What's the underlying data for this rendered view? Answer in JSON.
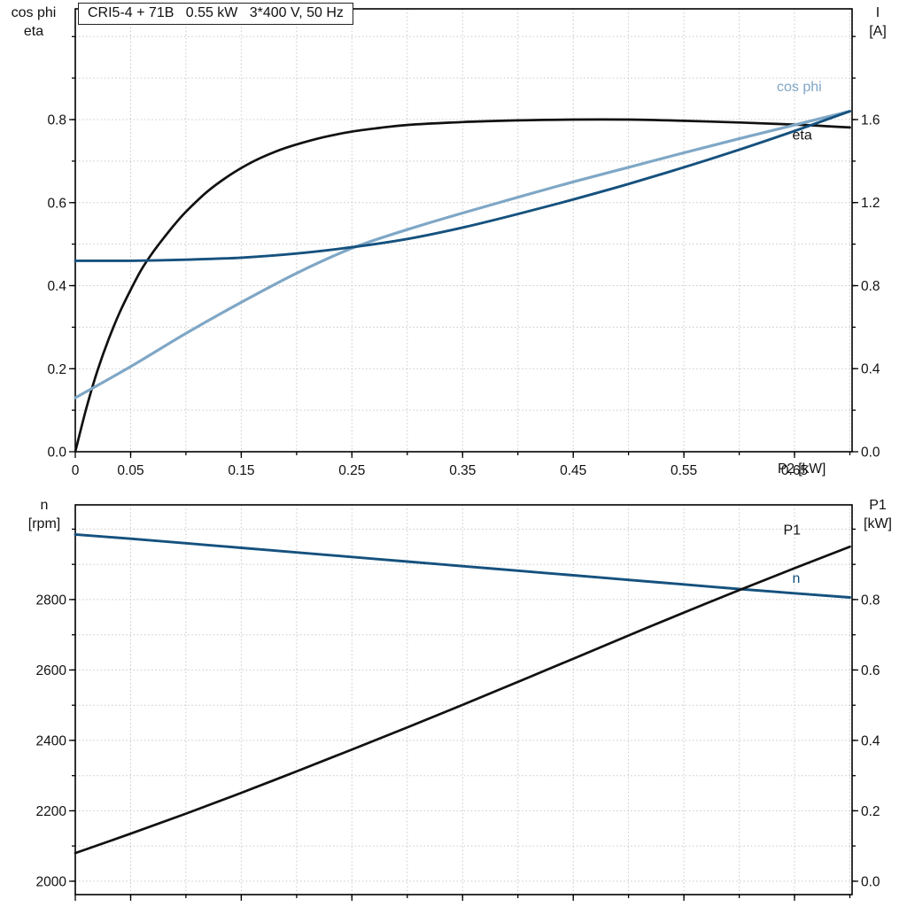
{
  "colors": {
    "black": "#111111",
    "dark_blue": "#15517e",
    "light_blue": "#7fa7c6",
    "grid": "#c8c8c8",
    "axis": "#000000"
  },
  "chart_data": [
    {
      "type": "line",
      "title": "CRI5-4 + 71B   0.55 kW   3*400 V, 50 Hz",
      "x_axis": {
        "label": "P2 [kW]",
        "lim": [
          0,
          0.702
        ],
        "minor_step": 0.05,
        "ticks": [
          0,
          0.05,
          0.15,
          0.25,
          0.35,
          0.45,
          0.55,
          0.65
        ],
        "tick_labels": [
          "0",
          "0.05",
          "0.15",
          "0.25",
          "0.35",
          "0.45",
          "0.55",
          "0.65"
        ]
      },
      "y_left": {
        "label_lines": [
          "cos phi",
          "eta"
        ],
        "lim": [
          0,
          1.0667
        ],
        "minor_step": 0.1,
        "ticks": [
          0,
          0.2,
          0.4,
          0.6,
          0.8
        ],
        "tick_labels": [
          "0.0",
          "0.2",
          "0.4",
          "0.6",
          "0.8"
        ],
        "grid_step": 0.1
      },
      "y_right": {
        "label_lines": [
          "I",
          "[A]"
        ],
        "lim": [
          0,
          2.1333
        ],
        "minor_step": 0.2,
        "ticks": [
          0,
          0.4,
          0.8,
          1.2,
          1.6
        ],
        "tick_labels": [
          "0.0",
          "0.4",
          "0.8",
          "1.2",
          "1.6"
        ]
      },
      "series": [
        {
          "name": "eta",
          "axis": "left",
          "color": "black",
          "width": 2.7,
          "x": [
            0,
            0.01,
            0.02,
            0.03,
            0.04,
            0.05,
            0.06,
            0.07,
            0.08,
            0.09,
            0.1,
            0.12,
            0.14,
            0.16,
            0.18,
            0.2,
            0.225,
            0.25,
            0.275,
            0.3,
            0.35,
            0.4,
            0.45,
            0.5,
            0.55,
            0.6,
            0.65,
            0.7
          ],
          "values": [
            0,
            0.105,
            0.195,
            0.27,
            0.335,
            0.39,
            0.44,
            0.48,
            0.515,
            0.548,
            0.578,
            0.628,
            0.667,
            0.698,
            0.722,
            0.74,
            0.758,
            0.771,
            0.78,
            0.787,
            0.794,
            0.798,
            0.8,
            0.8,
            0.797,
            0.793,
            0.788,
            0.781
          ],
          "label": {
            "text": "eta",
            "x": 0.648,
            "v": 0.752
          }
        },
        {
          "name": "cos-phi",
          "axis": "left",
          "color": "light_blue",
          "width": 3.2,
          "x": [
            0,
            0.05,
            0.1,
            0.15,
            0.2,
            0.25,
            0.3,
            0.35,
            0.4,
            0.45,
            0.5,
            0.55,
            0.6,
            0.65,
            0.7
          ],
          "values": [
            0.13,
            0.205,
            0.285,
            0.36,
            0.43,
            0.49,
            0.535,
            0.575,
            0.613,
            0.65,
            0.685,
            0.72,
            0.754,
            0.787,
            0.82
          ],
          "label": {
            "text": "cos phi",
            "x": 0.634,
            "v": 0.868
          }
        },
        {
          "name": "current-I",
          "axis": "right",
          "color": "dark_blue",
          "width": 2.9,
          "x": [
            0,
            0.05,
            0.1,
            0.15,
            0.2,
            0.25,
            0.3,
            0.35,
            0.4,
            0.45,
            0.5,
            0.55,
            0.6,
            0.65,
            0.7
          ],
          "values": [
            0.92,
            0.92,
            0.925,
            0.935,
            0.955,
            0.985,
            1.025,
            1.08,
            1.145,
            1.215,
            1.29,
            1.37,
            1.455,
            1.545,
            1.64
          ]
        }
      ]
    },
    {
      "type": "line",
      "x_axis": {
        "label": "",
        "lim": [
          0,
          0.702
        ],
        "minor_step": 0.05,
        "ticks": [
          0,
          0.05,
          0.15,
          0.25,
          0.35,
          0.45,
          0.55,
          0.65
        ],
        "tick_labels": null
      },
      "y_left": {
        "label_lines": [
          "n",
          "[rpm]"
        ],
        "lim": [
          1962,
          3069
        ],
        "minor_step": 100,
        "ticks": [
          2000,
          2200,
          2400,
          2600,
          2800
        ],
        "tick_labels": [
          "2000",
          "2200",
          "2400",
          "2600",
          "2800"
        ],
        "grid_step": 100
      },
      "y_right": {
        "label_lines": [
          "P1",
          "[kW]"
        ],
        "lim": [
          -0.038,
          1.069
        ],
        "minor_step": 0.1,
        "ticks": [
          0,
          0.2,
          0.4,
          0.6,
          0.8
        ],
        "tick_labels": [
          "0.0",
          "0.2",
          "0.4",
          "0.6",
          "0.8"
        ]
      },
      "series": [
        {
          "name": "speed-n",
          "axis": "left",
          "color": "dark_blue",
          "width": 2.9,
          "x": [
            0,
            0.05,
            0.1,
            0.15,
            0.2,
            0.25,
            0.3,
            0.35,
            0.4,
            0.45,
            0.5,
            0.55,
            0.6,
            0.65,
            0.7
          ],
          "values": [
            2985,
            2973,
            2960,
            2947,
            2934,
            2921,
            2908,
            2895,
            2882,
            2869,
            2856,
            2843,
            2830,
            2818,
            2806
          ],
          "label": {
            "text": "n",
            "x": 0.648,
            "v": 2848
          }
        },
        {
          "name": "P1",
          "axis": "right",
          "color": "black",
          "width": 2.7,
          "x": [
            0,
            0.05,
            0.1,
            0.15,
            0.2,
            0.25,
            0.3,
            0.35,
            0.4,
            0.45,
            0.5,
            0.55,
            0.6,
            0.65,
            0.7
          ],
          "values": [
            0.08,
            0.135,
            0.192,
            0.251,
            0.312,
            0.374,
            0.437,
            0.501,
            0.566,
            0.632,
            0.698,
            0.763,
            0.827,
            0.889,
            0.95
          ],
          "label": {
            "text": "P1",
            "x": 0.64,
            "v": 0.985
          }
        }
      ]
    }
  ]
}
